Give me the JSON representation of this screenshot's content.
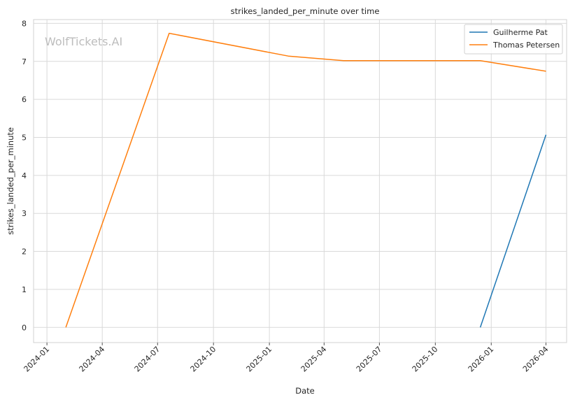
{
  "chart_data": {
    "type": "line",
    "title": "strikes_landed_per_minute over time",
    "xlabel": "Date",
    "ylabel": "strikes_landed_per_minute",
    "watermark": "WolfTickets.AI",
    "xlim": [
      "2023-12-10",
      "2026-05-05"
    ],
    "ylim": [
      -0.4,
      8.1
    ],
    "x_ticks": [
      "2024-01-01",
      "2024-04-01",
      "2024-07-01",
      "2024-10-01",
      "2025-01-01",
      "2025-04-01",
      "2025-07-01",
      "2025-10-01",
      "2026-01-01",
      "2026-04-01"
    ],
    "x_tick_labels": [
      "2024-01",
      "2024-04",
      "2024-07",
      "2024-10",
      "2025-01",
      "2025-04",
      "2025-07",
      "2025-10",
      "2026-01",
      "2026-04"
    ],
    "y_ticks": [
      0,
      1,
      2,
      3,
      4,
      5,
      6,
      7,
      8
    ],
    "y_tick_labels": [
      "0",
      "1",
      "2",
      "3",
      "4",
      "5",
      "6",
      "7",
      "8"
    ],
    "grid": true,
    "legend_position": "top-right",
    "series": [
      {
        "name": "Guilherme Pat",
        "color": "#1f77b4",
        "x": [
          "2025-12-14",
          "2026-04-01"
        ],
        "y": [
          0,
          5.07
        ]
      },
      {
        "name": "Thomas Petersen",
        "color": "#ff7f0e",
        "x": [
          "2024-02-01",
          "2024-07-20",
          "2025-02-01",
          "2025-05-03",
          "2025-12-14",
          "2026-04-01"
        ],
        "y": [
          0,
          7.74,
          7.14,
          7.02,
          7.02,
          6.74
        ]
      }
    ]
  }
}
